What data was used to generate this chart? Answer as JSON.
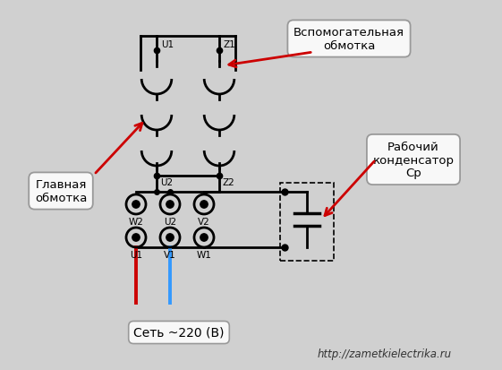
{
  "bg_color": "#d0d0d0",
  "inner_bg": "#f0f0f0",
  "title_text_1": "Вспомогательная\nобмотка",
  "title_text_2": "Главная\nобмотка",
  "title_text_3": "Рабочий\nконденсатор\nСр",
  "bottom_text": "Сеть ~220 (В)",
  "url_text": "http://zametkielectrika.ru",
  "label_U1_top": "U1",
  "label_Z1_top": "Z1",
  "label_U2": "U2",
  "label_Z2": "Z2",
  "label_W2": "W2",
  "label_U2b": "U2",
  "label_V2": "V2",
  "label_U1b": "U1",
  "label_V1": "V1",
  "label_W1": "W1",
  "line_color": "#000000",
  "red_color": "#cc0000",
  "blue_color": "#3399ff",
  "arrow_color": "#cc0000",
  "box_fill": "#f8f8f8",
  "box_edge": "#999999"
}
